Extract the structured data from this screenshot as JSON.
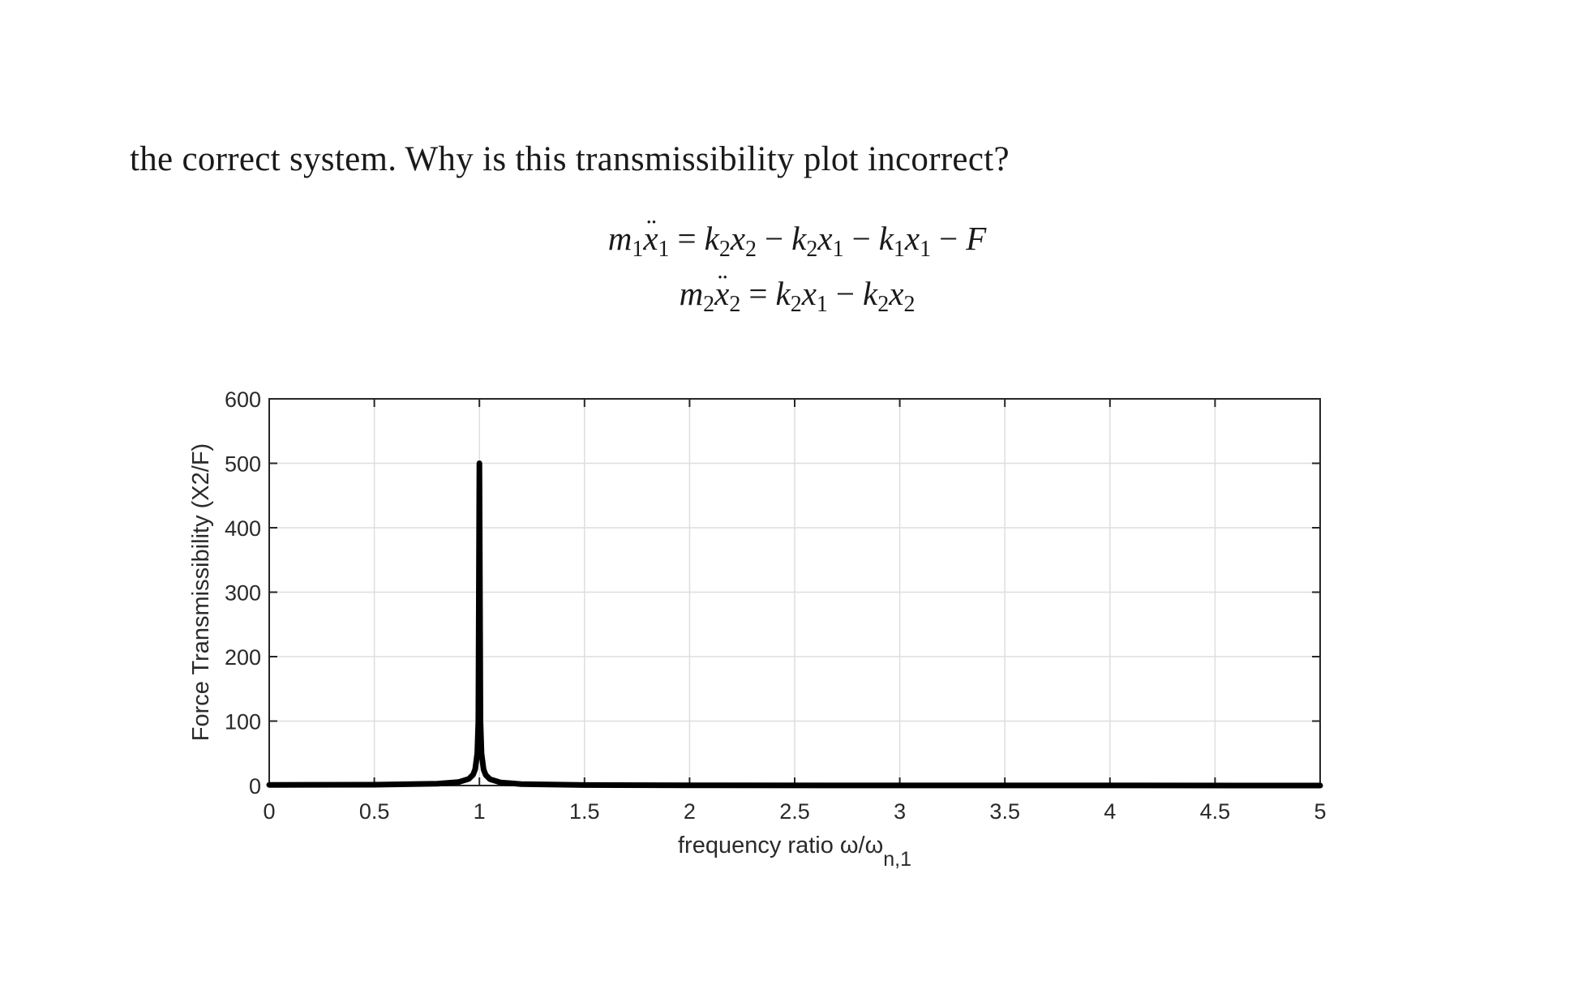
{
  "intro_text": "the correct system. Why is this transmissibility plot incorrect?",
  "equations": {
    "eq1": {
      "lhs_mass": "m",
      "lhs_mass_sub": "1",
      "lhs_var": "x",
      "lhs_var_sub": "1",
      "equals": "=",
      "terms": [
        {
          "coef": "k",
          "coef_sub": "2",
          "var": "x",
          "var_sub": "2"
        },
        {
          "sign": "−",
          "coef": "k",
          "coef_sub": "2",
          "var": "x",
          "var_sub": "1"
        },
        {
          "sign": "−",
          "coef": "k",
          "coef_sub": "1",
          "var": "x",
          "var_sub": "1"
        },
        {
          "sign": "−",
          "var": "F"
        }
      ]
    },
    "eq2": {
      "lhs_mass": "m",
      "lhs_mass_sub": "2",
      "lhs_var": "x",
      "lhs_var_sub": "2",
      "equals": "=",
      "terms": [
        {
          "coef": "k",
          "coef_sub": "2",
          "var": "x",
          "var_sub": "1"
        },
        {
          "sign": "−",
          "coef": "k",
          "coef_sub": "2",
          "var": "x",
          "var_sub": "2"
        }
      ]
    }
  },
  "chart_data": {
    "type": "line",
    "title": "",
    "xlabel": "frequency ratio ω/ω",
    "xlabel_sub": "n,1",
    "ylabel": "Force Transmissibility (X2/F)",
    "xlim": [
      0,
      5
    ],
    "ylim": [
      0,
      600
    ],
    "xticks": [
      0,
      0.5,
      1,
      1.5,
      2,
      2.5,
      3,
      3.5,
      4,
      4.5,
      5
    ],
    "xtick_labels": [
      "0",
      "0.5",
      "1",
      "1.5",
      "2",
      "2.5",
      "3",
      "3.5",
      "4",
      "4.5",
      "5"
    ],
    "yticks": [
      0,
      100,
      200,
      300,
      400,
      500,
      600
    ],
    "ytick_labels": [
      "0",
      "100",
      "200",
      "300",
      "400",
      "500",
      "600"
    ],
    "grid": true,
    "series": [
      {
        "color": "#000000",
        "x": [
          0,
          0.5,
          0.8,
          0.9,
          0.95,
          0.97,
          0.98,
          0.99,
          0.995,
          1.0,
          1.005,
          1.01,
          1.02,
          1.03,
          1.05,
          1.1,
          1.2,
          1.5,
          2,
          3,
          4,
          5
        ],
        "y": [
          1.0,
          1.3,
          2.8,
          5.3,
          10.3,
          16.9,
          25.3,
          50.3,
          100,
          500,
          100,
          49.8,
          24.8,
          16.4,
          9.8,
          4.8,
          2.3,
          0.8,
          0.33,
          0.13,
          0.07,
          0.04
        ]
      }
    ]
  }
}
